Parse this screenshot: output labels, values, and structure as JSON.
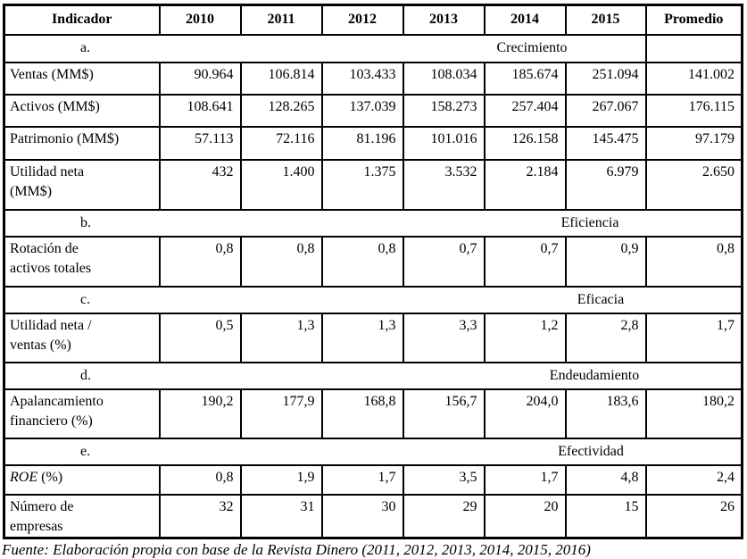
{
  "colors": {
    "background": "#ffffff",
    "text": "#000000",
    "border": "#000000"
  },
  "table": {
    "columns": [
      "Indicador",
      "2010",
      "2011",
      "2012",
      "2013",
      "2014",
      "2015",
      "Promedio"
    ],
    "body": [
      {
        "type": "section",
        "id": "a",
        "letter": "a.",
        "title": "Crecimiento"
      },
      {
        "type": "row",
        "label_lines": [
          "Ventas (MM$)"
        ],
        "values": [
          "90.964",
          "106.814",
          "103.433",
          "108.034",
          "185.674",
          "251.094",
          "141.002"
        ]
      },
      {
        "type": "row",
        "label_lines": [
          "Activos (MM$)"
        ],
        "values": [
          "108.641",
          "128.265",
          "137.039",
          "158.273",
          "257.404",
          "267.067",
          "176.115"
        ]
      },
      {
        "type": "row",
        "label_lines": [
          "Patrimonio (MM$)"
        ],
        "values": [
          "57.113",
          "72.116",
          "81.196",
          "101.016",
          "126.158",
          "145.475",
          "97.179"
        ]
      },
      {
        "type": "row",
        "label_lines": [
          "Utilidad neta",
          "(MM$)"
        ],
        "values": [
          "432",
          "1.400",
          "1.375",
          "3.532",
          "2.184",
          "6.979",
          "2.650"
        ]
      },
      {
        "type": "section",
        "id": "b",
        "letter": "b.",
        "title": "Eficiencia"
      },
      {
        "type": "row",
        "label_lines": [
          "Rotación de",
          "activos totales"
        ],
        "values": [
          "0,8",
          "0,8",
          "0,8",
          "0,7",
          "0,7",
          "0,9",
          "0,8"
        ]
      },
      {
        "type": "section",
        "id": "c",
        "letter": "c.",
        "title": "Eficacia"
      },
      {
        "type": "row",
        "label_lines": [
          "Utilidad neta /",
          "ventas (%)"
        ],
        "values": [
          "0,5",
          "1,3",
          "1,3",
          "3,3",
          "1,2",
          "2,8",
          "1,7"
        ]
      },
      {
        "type": "section",
        "id": "d",
        "letter": "d.",
        "title": "Endeudamiento"
      },
      {
        "type": "row",
        "label_lines": [
          "Apalancamiento",
          "financiero (%)"
        ],
        "values": [
          "190,2",
          "177,9",
          "168,8",
          "156,7",
          "204,0",
          "183,6",
          "180,2"
        ]
      },
      {
        "type": "section",
        "id": "e",
        "letter": "e.",
        "title": "Efectividad"
      },
      {
        "type": "row",
        "label_em": "ROE",
        "label_rest": " (%)",
        "label_lines": [],
        "values": [
          "0,8",
          "1,9",
          "1,7",
          "3,5",
          "1,7",
          "4,8",
          "2,4"
        ]
      },
      {
        "type": "row",
        "label_lines": [
          "Número de",
          "empresas"
        ],
        "values": [
          "32",
          "31",
          "30",
          "29",
          "20",
          "15",
          "26"
        ]
      }
    ]
  },
  "caption": "Fuente: Elaboración propia con base de la Revista Dinero (2011, 2012, 2013, 2014, 2015, 2016)"
}
